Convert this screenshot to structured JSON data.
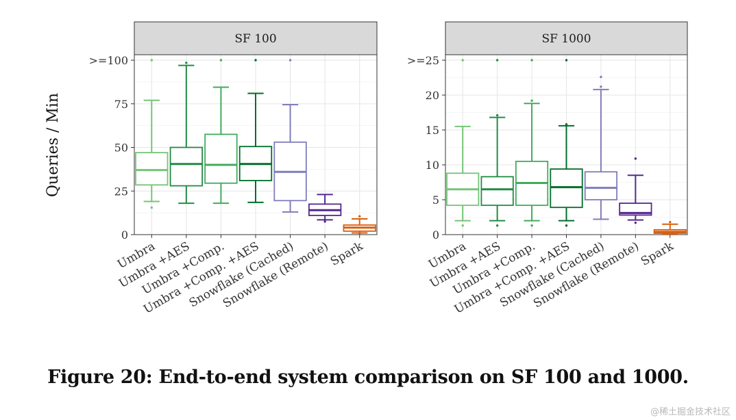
{
  "caption": "Figure 20: End-to-end system comparison on SF 100 and 1000.",
  "watermark": "@稀土掘金技术社区",
  "colors": {
    "umbra": "#74c476",
    "umbra_aes": "#238b45",
    "umbra_comp": "#41ab5d",
    "umbra_comp_aes": "#006d2c",
    "snowflake_cached": "#807dba",
    "snowflake_remote": "#54278f",
    "spark": "#d95f0e"
  },
  "chart_data": [
    {
      "type": "boxplot",
      "panel_title": "SF 100",
      "ylabel": "Queries / Min",
      "ylim": [
        0,
        100
      ],
      "yticks": [
        0,
        25,
        50,
        75,
        100
      ],
      "ytick_labels": [
        "0",
        "25",
        "50",
        "75",
        ">=100"
      ],
      "grid": true,
      "categories": [
        "Umbra",
        "Umbra +AES",
        "Umbra +Comp.",
        "Umbra +Comp. +AES",
        "Snowflake (Cached)",
        "Snowflake (Remote)",
        "Spark"
      ],
      "boxes": [
        {
          "name": "Umbra",
          "whisker_low": 19,
          "q1": 28.5,
          "median": 37,
          "q3": 47,
          "whisker_high": 77,
          "outliers": [
            15.5,
            100
          ]
        },
        {
          "name": "Umbra +AES",
          "whisker_low": 18,
          "q1": 28,
          "median": 40.5,
          "q3": 50,
          "whisker_high": 97,
          "outliers": [
            98.5
          ]
        },
        {
          "name": "Umbra +Comp.",
          "whisker_low": 18,
          "q1": 29.5,
          "median": 40,
          "q3": 57.5,
          "whisker_high": 84.5,
          "outliers": [
            100
          ]
        },
        {
          "name": "Umbra +Comp. +AES",
          "whisker_low": 18.5,
          "q1": 31,
          "median": 40.5,
          "q3": 50.5,
          "whisker_high": 81,
          "outliers": [
            100
          ]
        },
        {
          "name": "Snowflake (Cached)",
          "whisker_low": 13,
          "q1": 19.5,
          "median": 36,
          "q3": 53,
          "whisker_high": 74.5,
          "outliers": [
            100
          ]
        },
        {
          "name": "Snowflake (Remote)",
          "whisker_low": 8.5,
          "q1": 11,
          "median": 14,
          "q3": 17.5,
          "whisker_high": 23,
          "outliers": [
            7.5
          ]
        },
        {
          "name": "Spark",
          "whisker_low": 1,
          "q1": 2,
          "median": 4,
          "q3": 5.5,
          "whisker_high": 9,
          "outliers": [
            0.5,
            10.5
          ]
        }
      ]
    },
    {
      "type": "boxplot",
      "panel_title": "SF 1000",
      "ylim": [
        0,
        25
      ],
      "yticks": [
        0,
        5,
        10,
        15,
        20,
        25
      ],
      "ytick_labels": [
        "0",
        "5",
        "10",
        "15",
        "20",
        ">=25"
      ],
      "grid": true,
      "categories": [
        "Umbra",
        "Umbra +AES",
        "Umbra +Comp.",
        "Umbra +Comp. +AES",
        "Snowflake (Cached)",
        "Snowflake (Remote)",
        "Spark"
      ],
      "boxes": [
        {
          "name": "Umbra",
          "whisker_low": 2,
          "q1": 4.2,
          "median": 6.5,
          "q3": 8.8,
          "whisker_high": 15.5,
          "outliers": [
            1.3,
            25
          ]
        },
        {
          "name": "Umbra +AES",
          "whisker_low": 2,
          "q1": 4.2,
          "median": 6.5,
          "q3": 8.3,
          "whisker_high": 16.8,
          "outliers": [
            1.3,
            17.1,
            25
          ]
        },
        {
          "name": "Umbra +Comp.",
          "whisker_low": 2,
          "q1": 4.2,
          "median": 7.4,
          "q3": 10.5,
          "whisker_high": 18.8,
          "outliers": [
            1.3,
            19.2,
            25
          ]
        },
        {
          "name": "Umbra +Comp. +AES",
          "whisker_low": 2,
          "q1": 3.9,
          "median": 6.8,
          "q3": 9.4,
          "whisker_high": 15.6,
          "outliers": [
            1.3,
            15.8,
            25
          ]
        },
        {
          "name": "Snowflake (Cached)",
          "whisker_low": 2.2,
          "q1": 5,
          "median": 6.7,
          "q3": 9,
          "whisker_high": 20.8,
          "outliers": [
            21.2,
            22.6
          ]
        },
        {
          "name": "Snowflake (Remote)",
          "whisker_low": 2.1,
          "q1": 2.8,
          "median": 3.1,
          "q3": 4.5,
          "whisker_high": 8.5,
          "outliers": [
            1.7,
            10.9
          ]
        },
        {
          "name": "Spark",
          "whisker_low": 0.1,
          "q1": 0.2,
          "median": 0.4,
          "q3": 0.7,
          "whisker_high": 1.5,
          "outliers": [
            1.8
          ]
        }
      ]
    }
  ]
}
